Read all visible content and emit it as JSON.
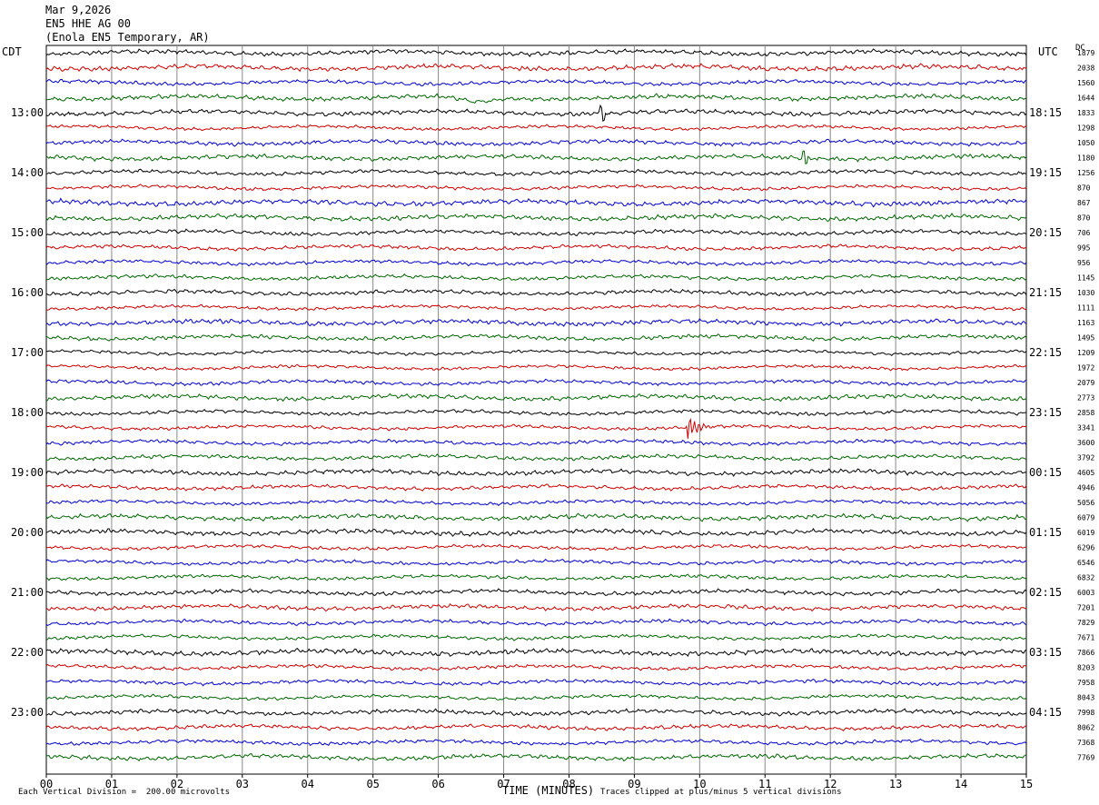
{
  "header": {
    "date": "Mar 9,2026",
    "channel": "EN5 HHE AG 00",
    "station": "(Enola EN5 Temporary, AR)"
  },
  "labels": {
    "left_zone": "CDT",
    "right_zone": "UTC",
    "dc": "DC"
  },
  "footer": {
    "scale_note": "Each Vertical Division =  200.00 microvolts",
    "xlabel": "TIME (MINUTES)",
    "clip_note": "Traces clipped at plus/minus 5 vertical divisions"
  },
  "colors": {
    "cycle": [
      "#000000",
      "#cc0000",
      "#0000cc",
      "#006600"
    ],
    "grid": "#888888"
  },
  "chart_data": {
    "type": "line",
    "title": "",
    "xlabel": "TIME (MINUTES)",
    "x_ticks": [
      "00",
      "01",
      "02",
      "03",
      "04",
      "05",
      "06",
      "07",
      "08",
      "09",
      "10",
      "11",
      "12",
      "13",
      "14",
      "15"
    ],
    "xlim": [
      0,
      15
    ],
    "trace_count": 48,
    "trace_minutes": 15,
    "left_hour_labels": [
      "13:00",
      "14:00",
      "15:00",
      "16:00",
      "17:00",
      "18:00",
      "19:00",
      "20:00",
      "21:00",
      "22:00",
      "23:00"
    ],
    "right_hour_labels": [
      "18:15",
      "19:15",
      "20:15",
      "21:15",
      "22:15",
      "23:15",
      "00:15",
      "01:15",
      "02:15",
      "03:15",
      "04:15"
    ],
    "dc_offsets": [
      "1879",
      "2038",
      "1560",
      "1644",
      "1833",
      "1298",
      "1050",
      "1180",
      "1256",
      "870",
      "867",
      "870",
      "706",
      "995",
      "956",
      "1145",
      "1030",
      "1111",
      "1163",
      "1495",
      "1209",
      "1972",
      "2079",
      "2773",
      "2858",
      "3341",
      "3600",
      "3792",
      "4605",
      "4946",
      "5056",
      "6079",
      "6019",
      "6296",
      "6546",
      "6832",
      "6003",
      "7201",
      "7829",
      "7671",
      "7866",
      "8203",
      "7958",
      "8043",
      "7998",
      "8062",
      "7368",
      "7769"
    ],
    "events": [
      {
        "trace": 3,
        "minute": 6.6,
        "type": "dip"
      },
      {
        "trace": 4,
        "minute": 8.5,
        "type": "spike"
      },
      {
        "trace": 7,
        "minute": 11.6,
        "type": "spike"
      },
      {
        "trace": 25,
        "minute": 9.8,
        "type": "earthquake"
      }
    ]
  }
}
